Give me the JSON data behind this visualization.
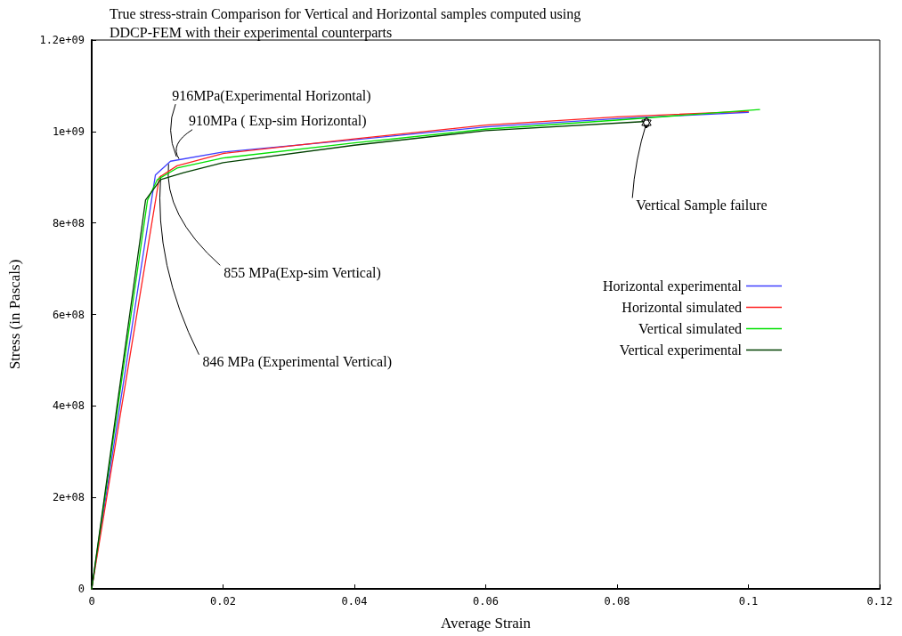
{
  "chart_data": {
    "type": "line",
    "title": "True stress-strain Comparison for Vertical and Horizontal samples computed using DDCP-FEM with their experimental counterparts",
    "xlabel": "Average Strain",
    "ylabel": "Stress (in Pascals)",
    "series": [
      {
        "name": "Horizontal experimental",
        "color": "#4040ff",
        "x": [
          0,
          0.0097,
          0.012,
          0.02,
          0.04,
          0.06,
          0.08,
          0.1
        ],
        "values": [
          0,
          905000000,
          935000000,
          955000000,
          982000000,
          1010000000,
          1028000000,
          1042000000
        ]
      },
      {
        "name": "Horizontal simulated",
        "color": "#ff2020",
        "x": [
          0,
          0.0103,
          0.013,
          0.02,
          0.04,
          0.06,
          0.08,
          0.1
        ],
        "values": [
          0,
          900000000,
          925000000,
          952000000,
          984000000,
          1014000000,
          1032000000,
          1044000000
        ]
      },
      {
        "name": "Vertical simulated",
        "color": "#00e000",
        "x": [
          0,
          0.0085,
          0.01,
          0.013,
          0.02,
          0.04,
          0.06,
          0.08,
          0.1017
        ],
        "values": [
          0,
          850000000,
          895000000,
          920000000,
          942000000,
          975000000,
          1005000000,
          1025000000,
          1048000000
        ]
      },
      {
        "name": "Vertical experimental",
        "color": "#004000",
        "x": [
          0,
          0.0082,
          0.0105,
          0.014,
          0.02,
          0.04,
          0.06,
          0.0845
        ],
        "values": [
          0,
          850000000,
          895000000,
          910000000,
          932000000,
          970000000,
          1002000000,
          1022000000
        ]
      }
    ],
    "xlim": [
      0,
      0.12
    ],
    "xticks": [
      0,
      0.02,
      0.04,
      0.06,
      0.08,
      0.1,
      0.12
    ],
    "ylim": [
      0,
      1200000000
    ],
    "yticks": [
      0,
      {
        "value": 200000000,
        "label": "2e+08"
      },
      {
        "value": 400000000,
        "label": "4e+08"
      },
      {
        "value": 600000000,
        "label": "6e+08"
      },
      {
        "value": 800000000,
        "label": "8e+08"
      },
      {
        "value": 1000000000,
        "label": "1e+09"
      },
      {
        "value": 1200000000,
        "label": "1.2e+09"
      }
    ],
    "annotations": [
      {
        "text": "916MPa(Experimental Horizontal)",
        "x": 0.0129,
        "y": 945000000
      },
      {
        "text": "910MPa ( Exp-sim Horizontal)",
        "x": 0.0133,
        "y": 940000000
      },
      {
        "text": "855 MPa(Exp-sim Vertical)",
        "x": 0.0117,
        "y": 929000000
      },
      {
        "text": "846 MPa (Experimental Vertical)",
        "x": 0.0105,
        "y": 903000000
      },
      {
        "text": "Vertical Sample failure",
        "x": 0.0845,
        "y": 1020000000
      }
    ],
    "grid": false,
    "legend": "right",
    "marker": "none",
    "line_style": "solid"
  }
}
